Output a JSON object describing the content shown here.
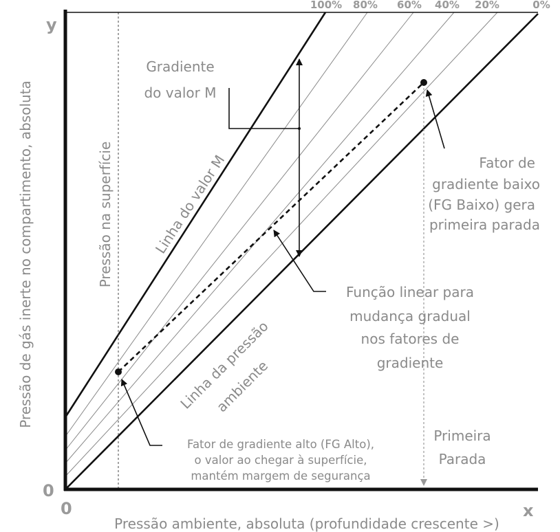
{
  "axes": {
    "y_letter": "y",
    "x_letter": "x",
    "origin_y": "0",
    "origin_x": "0",
    "ylabel": "Pressão de gás inerte no compartimento, absoluta",
    "xlabel": "Pressão ambiente, absoluta (profundidade crescente >)"
  },
  "percent_labels": [
    "100%",
    "80%",
    "60%",
    "40%",
    "20%",
    "0%"
  ],
  "lines": {
    "m_value": "Linha do valor M",
    "ambient_1": "Linha da pressão",
    "ambient_2": "ambiente",
    "surface": "Pressão na superfície"
  },
  "annotations": {
    "gradient_1": "Gradiente",
    "gradient_2": "do valor M",
    "gf_low_1": "Fator de",
    "gf_low_2": "gradiente baixo",
    "gf_low_3": "(FG Baixo) gera",
    "gf_low_4": "primeira parada",
    "linear_1": "Função linear para",
    "linear_2": "mudança gradual",
    "linear_3": "nos fatores de",
    "linear_4": "gradiente",
    "gf_high_1": "Fator de gradiente alto (FG Alto),",
    "gf_high_2": "o valor ao chegar à superfície,",
    "gf_high_3": "mantém margem de segurança",
    "first_stop_1": "Primeira",
    "first_stop_2": "Parada"
  },
  "colors": {
    "axis": "#111111",
    "main_lines": "#111111",
    "gf_lines": "#8a8a8a",
    "text": "#8a8a8a"
  }
}
